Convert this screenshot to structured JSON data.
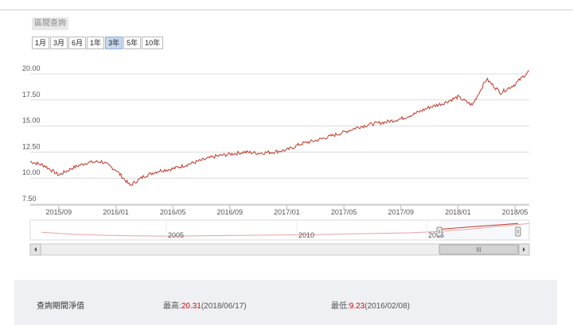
{
  "section_title": "區間查詢",
  "range_buttons": [
    {
      "label": "1月"
    },
    {
      "label": "3月"
    },
    {
      "label": "6月"
    },
    {
      "label": "1年"
    },
    {
      "label": "3年",
      "active": true
    },
    {
      "label": "5年"
    },
    {
      "label": "10年"
    }
  ],
  "chart_data": {
    "type": "line",
    "title": "",
    "xlabel": "",
    "ylabel": "",
    "y_ticks": [
      "20.00",
      "17.50",
      "15.00",
      "12.50",
      "10.00",
      "7.50"
    ],
    "ylim": [
      7.5,
      20.0
    ],
    "x_ticks": [
      "2015/09",
      "2016/01",
      "2016/05",
      "2016/09",
      "2017/01",
      "2017/05",
      "2017/09",
      "2018/01",
      "2018/05"
    ],
    "xlim": [
      "2015/07",
      "2018/06"
    ],
    "grid": "horizontal",
    "series_color": "#c0392b",
    "series": [
      {
        "x": [
          "2015/07",
          "2015/08",
          "2015/09",
          "2015/10",
          "2015/11",
          "2015/12",
          "2016/01",
          "2016/02",
          "2016/03",
          "2016/04",
          "2016/05",
          "2016/06",
          "2016/07",
          "2016/08",
          "2016/09",
          "2016/10",
          "2016/11",
          "2016/12",
          "2017/01",
          "2017/02",
          "2017/03",
          "2017/04",
          "2017/05",
          "2017/06",
          "2017/07",
          "2017/08",
          "2017/09",
          "2017/10",
          "2017/11",
          "2017/12",
          "2018/01",
          "2018/02",
          "2018/03",
          "2018/04",
          "2018/05",
          "2018/06"
        ],
        "values": [
          11.6,
          11.2,
          10.3,
          11.0,
          11.5,
          11.6,
          10.8,
          9.3,
          10.2,
          10.7,
          10.9,
          11.3,
          11.7,
          12.1,
          12.3,
          12.5,
          12.4,
          12.5,
          12.7,
          13.3,
          13.6,
          14.0,
          14.4,
          14.9,
          15.2,
          15.4,
          15.7,
          16.2,
          16.8,
          17.2,
          17.8,
          17.0,
          19.5,
          18.2,
          19.0,
          20.3
        ]
      }
    ],
    "navigator": {
      "x_ticks": [
        "2005",
        "2010",
        "2015"
      ],
      "values": [
        14.5,
        13.2,
        12.6,
        12.2,
        12.0,
        12.1,
        12.3,
        12.6,
        12.8,
        13.0,
        13.4,
        13.8,
        14.1,
        15.0,
        16.5,
        18.5,
        20.3
      ],
      "scrollbar_grip": "III"
    }
  },
  "summary": {
    "label": "查詢期間淨值",
    "high_prefix": "最高:",
    "high_value": "20.31",
    "high_date": "(2018/06/17)",
    "low_prefix": "最低:",
    "low_value": "9.23",
    "low_date": "(2016/02/08)"
  }
}
